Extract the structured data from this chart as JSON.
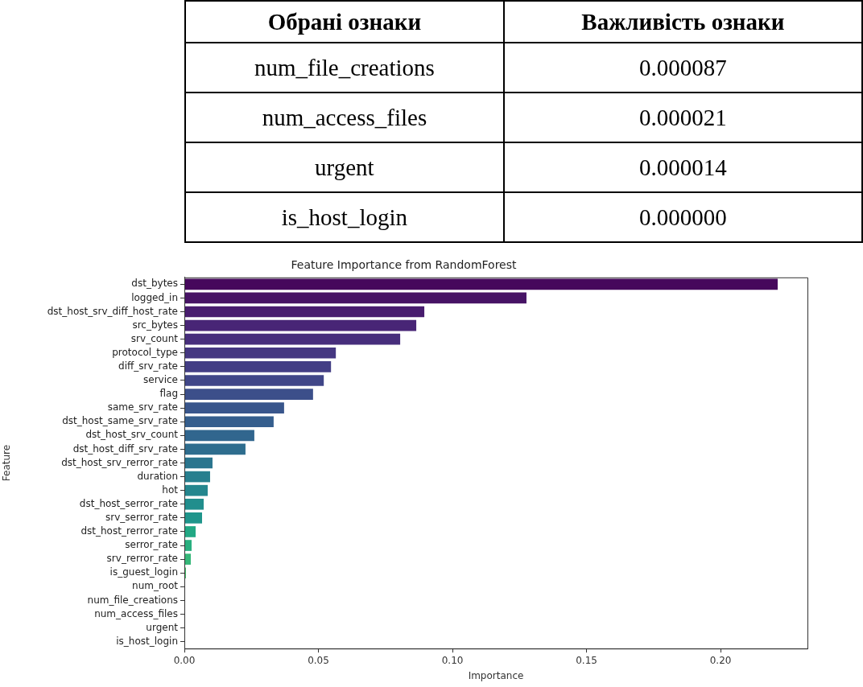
{
  "chart_data": [
    {
      "type": "other",
      "xlabel": "Обрані ознаки",
      "ylabel": "Важливість ознаки",
      "categories": [
        "num_file_creations",
        "num_access_files",
        "urgent",
        "is_host_login"
      ],
      "value_labels": [
        "0.000087",
        "0.000021",
        "0.000014",
        "0.000000"
      ]
    },
    {
      "type": "bar",
      "orientation": "horizontal",
      "title": "Feature Importance from RandomForest",
      "xlabel": "Importance",
      "ylabel": "Feature",
      "categories": [
        "dst_bytes",
        "logged_in",
        "dst_host_srv_diff_host_rate",
        "src_bytes",
        "srv_count",
        "protocol_type",
        "diff_srv_rate",
        "service",
        "flag",
        "same_srv_rate",
        "dst_host_same_srv_rate",
        "dst_host_srv_count",
        "dst_host_diff_srv_rate",
        "dst_host_srv_rerror_rate",
        "duration",
        "hot",
        "dst_host_serror_rate",
        "srv_serror_rate",
        "dst_host_rerror_rate",
        "serror_rate",
        "srv_rerror_rate",
        "is_guest_login",
        "num_root",
        "num_file_creations",
        "num_access_files",
        "urgent",
        "is_host_login"
      ],
      "values": [
        0.2213,
        0.1276,
        0.0895,
        0.0865,
        0.0805,
        0.0565,
        0.0547,
        0.052,
        0.048,
        0.0372,
        0.0333,
        0.0261,
        0.0228,
        0.0105,
        0.0096,
        0.0087,
        0.0072,
        0.0066,
        0.0042,
        0.0027,
        0.0024,
        0.0006,
        0.0,
        0.0,
        0.0,
        0.0,
        0.0
      ],
      "colors": [
        "#46085c",
        "#471365",
        "#481c6e",
        "#482576",
        "#472e7c",
        "#453781",
        "#433e85",
        "#404688",
        "#3c4f8a",
        "#39568c",
        "#355e8d",
        "#31668e",
        "#2e6d8e",
        "#2a758e",
        "#277f8e",
        "#24868e",
        "#218e8d",
        "#1f958b",
        "#22a884",
        "#29af7f",
        "#35b779",
        "#4ac16d",
        "#5ec962",
        "#75d054",
        "#8fd744",
        "#aadc32",
        "#c8e020"
      ],
      "xlim": [
        0,
        0.2324
      ],
      "xticks": [
        {
          "value": 0,
          "label": "0.00"
        },
        {
          "value": 0.05,
          "label": "0.05"
        },
        {
          "value": 0.1,
          "label": "0.10"
        },
        {
          "value": 0.15,
          "label": "0.15"
        },
        {
          "value": 0.2,
          "label": "0.20"
        }
      ],
      "grid": false,
      "legend": false
    }
  ]
}
